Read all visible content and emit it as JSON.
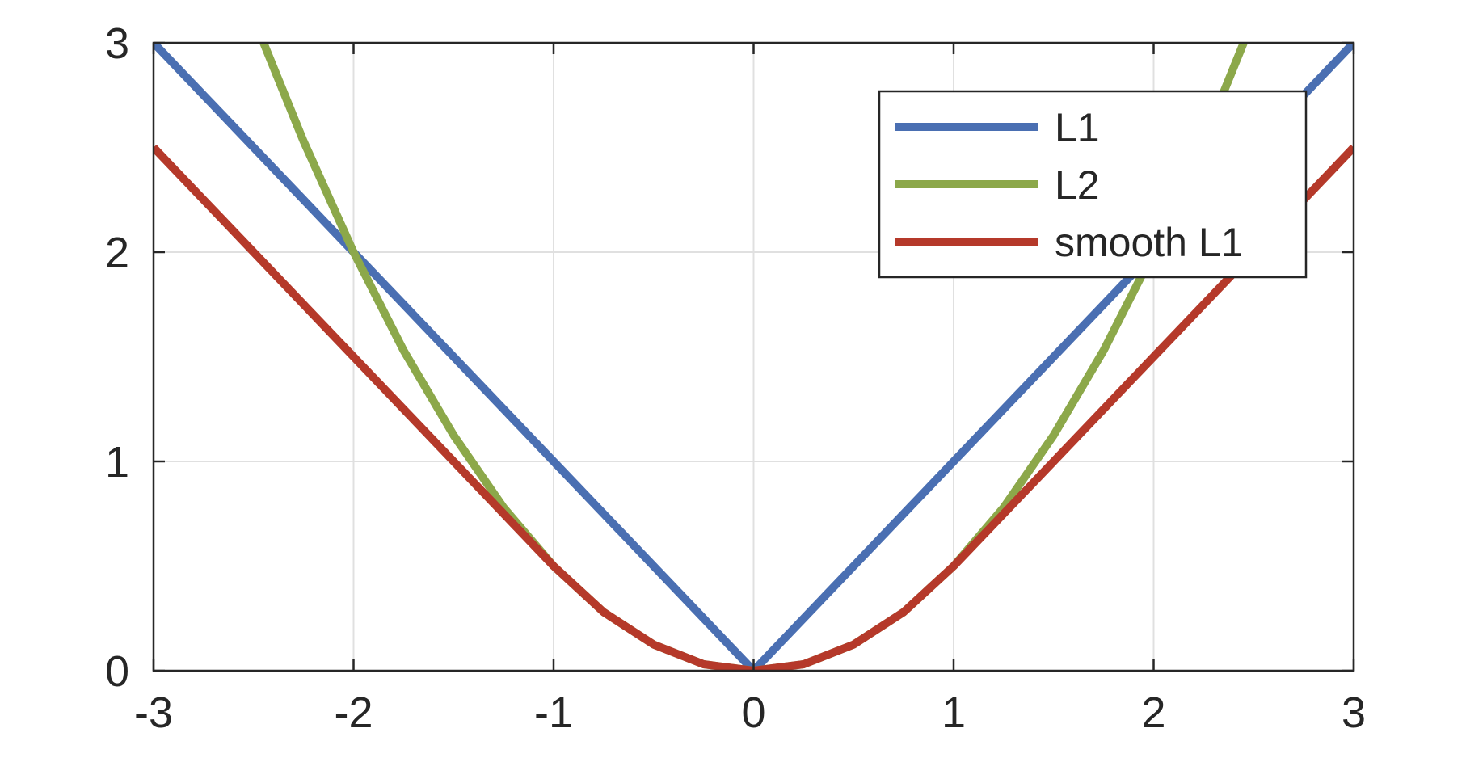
{
  "chart_data": {
    "type": "line",
    "title": "",
    "xlabel": "",
    "ylabel": "",
    "xlim": [
      -3,
      3
    ],
    "ylim": [
      0,
      3
    ],
    "xticks": [
      -3,
      -2,
      -1,
      0,
      1,
      2,
      3
    ],
    "yticks": [
      0,
      1,
      2,
      3
    ],
    "xtick_labels": [
      "-3",
      "-2",
      "-1",
      "0",
      "1",
      "2",
      "3"
    ],
    "ytick_labels": [
      "0",
      "1",
      "2",
      "3"
    ],
    "grid": true,
    "legend_position": "top-right",
    "series": [
      {
        "name": "L1",
        "color": "#4a6fb2",
        "x": [
          -3,
          -2.5,
          -2,
          -1.5,
          -1,
          -0.5,
          0,
          0.5,
          1,
          1.5,
          2,
          2.5,
          3
        ],
        "y": [
          3,
          2.5,
          2,
          1.5,
          1,
          0.5,
          0,
          0.5,
          1,
          1.5,
          2,
          2.5,
          3
        ]
      },
      {
        "name": "L2",
        "color": "#8ca84a",
        "x": [
          -2.45,
          -2.25,
          -2,
          -1.75,
          -1.5,
          -1.25,
          -1,
          -0.75,
          -0.5,
          -0.25,
          0,
          0.25,
          0.5,
          0.75,
          1,
          1.25,
          1.5,
          1.75,
          2,
          2.25,
          2.45
        ],
        "y": [
          3.0,
          2.53,
          2.0,
          1.53,
          1.125,
          0.78,
          0.5,
          0.28,
          0.125,
          0.031,
          0,
          0.031,
          0.125,
          0.28,
          0.5,
          0.78,
          1.125,
          1.53,
          2.0,
          2.53,
          3.0
        ]
      },
      {
        "name": "smooth L1",
        "color": "#b5392a",
        "x": [
          -3,
          -2.5,
          -2,
          -1.5,
          -1,
          -0.75,
          -0.5,
          -0.25,
          0,
          0.25,
          0.5,
          0.75,
          1,
          1.5,
          2,
          2.5,
          3
        ],
        "y": [
          2.5,
          2.0,
          1.5,
          1.0,
          0.5,
          0.28,
          0.125,
          0.031,
          0,
          0.031,
          0.125,
          0.28,
          0.5,
          1.0,
          1.5,
          2.0,
          2.5
        ]
      }
    ]
  }
}
